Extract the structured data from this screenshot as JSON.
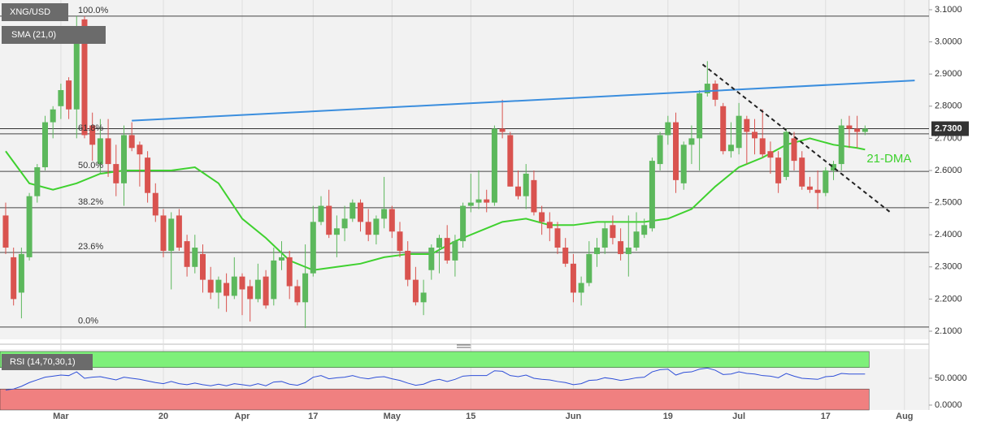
{
  "chart_data": [
    {
      "type": "candlestick",
      "title": "XNG/USD",
      "up_color": "#5cb85c",
      "down_color": "#d9534f",
      "xlim": [
        -0.72,
        117.11
      ],
      "ylim": [
        2.0747,
        3.1303
      ],
      "xticks": [
        {
          "value": 7,
          "label": "Mar"
        },
        {
          "value": 20,
          "label": "20"
        },
        {
          "value": 30,
          "label": "Apr"
        },
        {
          "value": 39,
          "label": "17"
        },
        {
          "value": 49,
          "label": "May"
        },
        {
          "value": 59,
          "label": "15"
        },
        {
          "value": 72,
          "label": "Jun"
        },
        {
          "value": 84,
          "label": "19"
        },
        {
          "value": 93,
          "label": "Jul"
        },
        {
          "value": 104,
          "label": "17"
        },
        {
          "value": 114,
          "label": "Aug"
        }
      ],
      "yticks": [
        {
          "value": 3.1,
          "label": "3.1000"
        },
        {
          "value": 3.0,
          "label": "3.0000"
        },
        {
          "value": 2.9,
          "label": "2.9000"
        },
        {
          "value": 2.8,
          "label": "2.8000"
        },
        {
          "value": 2.7,
          "label": "2.7000"
        },
        {
          "value": 2.6,
          "label": "2.6000"
        },
        {
          "value": 2.5,
          "label": "2.5000"
        },
        {
          "value": 2.4,
          "label": "2.4000"
        },
        {
          "value": 2.3,
          "label": "2.3000"
        },
        {
          "value": 2.2,
          "label": "2.2000"
        },
        {
          "value": 2.1,
          "label": "2.1000"
        }
      ],
      "open": [
        2.46,
        2.33,
        2.22,
        2.33,
        2.52,
        2.61,
        2.75,
        2.8,
        2.88,
        2.79,
        3.07,
        2.74,
        2.62,
        2.7,
        2.62,
        2.56,
        2.71,
        2.68,
        2.64,
        2.53,
        2.46,
        2.35,
        2.46,
        2.38,
        2.3,
        2.34,
        2.26,
        2.22,
        2.25,
        2.21,
        2.27,
        2.24,
        2.2,
        2.27,
        2.2,
        2.32,
        2.33,
        2.24,
        2.19,
        2.28,
        2.44,
        2.49,
        2.4,
        2.42,
        2.45,
        2.5,
        2.44,
        2.4,
        2.45,
        2.48,
        2.41,
        2.35,
        2.26,
        2.19,
        2.29,
        2.36,
        2.39,
        2.32,
        2.38,
        2.49,
        2.5,
        2.51,
        2.5,
        2.73,
        2.71,
        2.55,
        2.52,
        2.57,
        2.47,
        2.44,
        2.42,
        2.36,
        2.31,
        2.22,
        2.25,
        2.34,
        2.36,
        2.43,
        2.38,
        2.34,
        2.36,
        2.4,
        2.42,
        2.62,
        2.71,
        2.75,
        2.56,
        2.68,
        2.7,
        2.84,
        2.87,
        2.8,
        2.66,
        2.67,
        2.76,
        2.72,
        2.7,
        2.66,
        2.64,
        2.58,
        2.7,
        2.64,
        2.55,
        2.54,
        2.53,
        2.6,
        2.62,
        2.74,
        2.73,
        2.72
      ],
      "high": [
        2.5,
        2.36,
        2.36,
        2.53,
        2.62,
        2.77,
        2.8,
        2.87,
        2.89,
        3.08,
        3.08,
        2.78,
        2.76,
        2.76,
        2.68,
        2.74,
        2.75,
        2.69,
        2.66,
        2.56,
        2.48,
        2.47,
        2.48,
        2.4,
        2.4,
        2.37,
        2.3,
        2.27,
        2.28,
        2.33,
        2.28,
        2.26,
        2.31,
        2.29,
        2.36,
        2.38,
        2.35,
        2.26,
        2.37,
        2.49,
        2.52,
        2.54,
        2.46,
        2.49,
        2.51,
        2.51,
        2.48,
        2.46,
        2.58,
        2.49,
        2.44,
        2.38,
        2.3,
        2.26,
        2.37,
        2.4,
        2.43,
        2.4,
        2.5,
        2.59,
        2.6,
        2.54,
        2.74,
        2.82,
        2.72,
        2.6,
        2.62,
        2.6,
        2.49,
        2.47,
        2.44,
        2.39,
        2.34,
        2.27,
        2.38,
        2.39,
        2.44,
        2.46,
        2.42,
        2.46,
        2.47,
        2.45,
        2.64,
        2.72,
        2.77,
        2.78,
        2.69,
        2.74,
        2.85,
        2.94,
        2.88,
        2.81,
        2.75,
        2.81,
        2.77,
        2.76,
        2.79,
        2.69,
        2.66,
        2.73,
        2.72,
        2.66,
        2.58,
        2.6,
        2.61,
        2.63,
        2.76,
        2.77,
        2.77,
        2.74
      ],
      "low": [
        2.34,
        2.18,
        2.14,
        2.32,
        2.5,
        2.6,
        2.7,
        2.76,
        2.76,
        2.7,
        2.7,
        2.63,
        2.59,
        2.58,
        2.52,
        2.49,
        2.66,
        2.55,
        2.5,
        2.44,
        2.33,
        2.23,
        2.35,
        2.27,
        2.28,
        2.22,
        2.2,
        2.17,
        2.16,
        2.2,
        2.15,
        2.13,
        2.19,
        2.17,
        2.18,
        2.29,
        2.2,
        2.18,
        2.11,
        2.27,
        2.43,
        2.39,
        2.33,
        2.38,
        2.44,
        2.41,
        2.38,
        2.37,
        2.42,
        2.39,
        2.33,
        2.24,
        2.18,
        2.15,
        2.26,
        2.28,
        2.31,
        2.27,
        2.36,
        2.47,
        2.48,
        2.47,
        2.49,
        2.7,
        2.55,
        2.51,
        2.48,
        2.46,
        2.4,
        2.38,
        2.34,
        2.3,
        2.19,
        2.18,
        2.24,
        2.3,
        2.34,
        2.37,
        2.32,
        2.27,
        2.35,
        2.39,
        2.41,
        2.6,
        2.68,
        2.53,
        2.54,
        2.62,
        2.6,
        2.83,
        2.8,
        2.65,
        2.64,
        2.65,
        2.62,
        2.65,
        2.64,
        2.59,
        2.53,
        2.57,
        2.6,
        2.54,
        2.53,
        2.48,
        2.52,
        2.57,
        2.6,
        2.67,
        2.67,
        2.71
      ],
      "close": [
        2.36,
        2.2,
        2.34,
        2.52,
        2.61,
        2.75,
        2.79,
        2.85,
        2.79,
        3.02,
        2.71,
        2.68,
        2.7,
        2.62,
        2.56,
        2.71,
        2.67,
        2.65,
        2.53,
        2.46,
        2.35,
        2.45,
        2.36,
        2.3,
        2.36,
        2.26,
        2.22,
        2.26,
        2.21,
        2.27,
        2.23,
        2.2,
        2.26,
        2.18,
        2.32,
        2.33,
        2.24,
        2.19,
        2.28,
        2.44,
        2.49,
        2.4,
        2.42,
        2.45,
        2.5,
        2.44,
        2.4,
        2.45,
        2.48,
        2.41,
        2.35,
        2.26,
        2.19,
        2.22,
        2.36,
        2.39,
        2.32,
        2.38,
        2.49,
        2.5,
        2.51,
        2.5,
        2.73,
        2.72,
        2.55,
        2.52,
        2.59,
        2.47,
        2.44,
        2.42,
        2.36,
        2.31,
        2.22,
        2.25,
        2.34,
        2.36,
        2.42,
        2.39,
        2.34,
        2.36,
        2.41,
        2.43,
        2.63,
        2.71,
        2.75,
        2.57,
        2.68,
        2.7,
        2.84,
        2.87,
        2.82,
        2.66,
        2.68,
        2.77,
        2.72,
        2.7,
        2.65,
        2.64,
        2.56,
        2.72,
        2.63,
        2.55,
        2.54,
        2.53,
        2.6,
        2.62,
        2.74,
        2.73,
        2.72,
        2.73
      ],
      "sma": {
        "name": "SMA (21,0)",
        "color": "#3fd12f",
        "x": [
          0,
          3,
          6,
          9,
          12,
          15,
          18,
          21,
          24,
          27,
          30,
          33,
          36,
          39,
          42,
          45,
          48,
          51,
          54,
          57,
          60,
          63,
          66,
          69,
          72,
          75,
          78,
          81,
          84,
          87,
          90,
          93,
          96,
          99,
          102,
          105,
          108,
          109
        ],
        "values": [
          2.66,
          2.56,
          2.54,
          2.56,
          2.59,
          2.6,
          2.6,
          2.6,
          2.61,
          2.56,
          2.45,
          2.39,
          2.32,
          2.29,
          2.3,
          2.31,
          2.33,
          2.34,
          2.34,
          2.38,
          2.41,
          2.44,
          2.45,
          2.43,
          2.43,
          2.44,
          2.44,
          2.44,
          2.45,
          2.48,
          2.55,
          2.61,
          2.64,
          2.68,
          2.7,
          2.68,
          2.67,
          2.665
        ]
      },
      "sma_annotation": "21-DMA",
      "fib_levels": [
        {
          "label": "100.0%",
          "value": 3.08
        },
        {
          "label": "61.8%",
          "value": 2.714
        },
        {
          "label": "50.0%",
          "value": 2.597
        },
        {
          "label": "38.2%",
          "value": 2.484
        },
        {
          "label": "23.6%",
          "value": 2.345
        },
        {
          "label": "0.0%",
          "value": 2.113
        }
      ],
      "trendlines": [
        {
          "color": "#3b8ede",
          "dashed": false,
          "x": [
            16,
            115.3
          ],
          "y": [
            2.755,
            2.88
          ]
        },
        {
          "color": "#222222",
          "dashed": true,
          "x": [
            88.4,
            112.2
          ],
          "y": [
            2.93,
            2.47
          ]
        }
      ],
      "last_price": {
        "value": 2.73,
        "label": "2.7300"
      }
    },
    {
      "type": "line",
      "title": "RSI (14,70,30,1)",
      "color": "#2f4fd8",
      "xlim": [
        -0.72,
        117.11
      ],
      "ylim": [
        -9.1,
        104.5
      ],
      "upper": 70,
      "lower": 30,
      "upper_color": "#7ef07a",
      "lower_color": "#f08080",
      "yticks": [
        {
          "value": 50,
          "label": "50.0000"
        },
        {
          "value": 0,
          "label": "0.0000"
        }
      ],
      "values": [
        28,
        30,
        35,
        42,
        47,
        52,
        54,
        56,
        55,
        62,
        50,
        52,
        53,
        50,
        47,
        52,
        50,
        48,
        45,
        42,
        40,
        44,
        40,
        38,
        41,
        38,
        36,
        39,
        36,
        40,
        38,
        36,
        40,
        36,
        43,
        44,
        39,
        37,
        42,
        52,
        55,
        49,
        51,
        52,
        55,
        51,
        49,
        52,
        53,
        49,
        46,
        41,
        37,
        39,
        45,
        48,
        44,
        48,
        54,
        55,
        55,
        55,
        64,
        63,
        55,
        53,
        56,
        50,
        48,
        47,
        44,
        42,
        38,
        40,
        46,
        47,
        51,
        49,
        46,
        48,
        51,
        52,
        62,
        66,
        67,
        56,
        61,
        62,
        67,
        69,
        65,
        57,
        58,
        62,
        59,
        58,
        55,
        54,
        51,
        59,
        54,
        50,
        49,
        48,
        53,
        54,
        59,
        58,
        58,
        58
      ]
    }
  ]
}
